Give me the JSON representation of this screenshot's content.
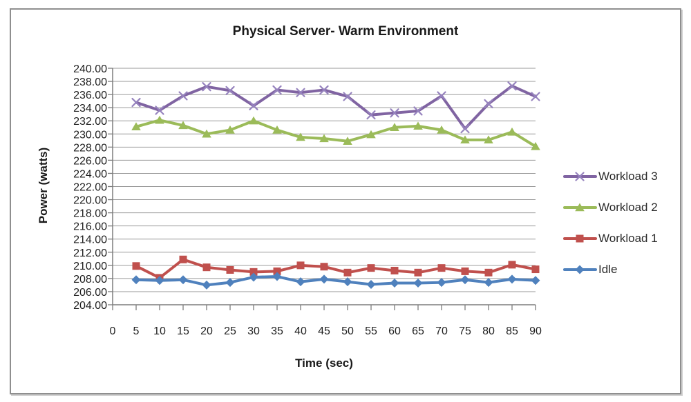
{
  "figure": {
    "background": "#ffffff",
    "border_color": "#8f8f8f",
    "grid_color": "#9a9a9a",
    "axis_color": "#7d7d7d",
    "text_color": "#1f1f1f"
  },
  "chart_data": {
    "type": "line",
    "title": "Physical Server- Warm Environment",
    "xlabel": "Time (sec)",
    "ylabel": "Power (watts)",
    "ylim": [
      204,
      240
    ],
    "y_tick_step": 2,
    "y_tick_labels": [
      "240.00",
      "238.00",
      "236.00",
      "234.00",
      "232.00",
      "230.00",
      "228.00",
      "226.00",
      "224.00",
      "222.00",
      "220.00",
      "218.00",
      "216.00",
      "214.00",
      "212.00",
      "210.00",
      "208.00",
      "206.00",
      "204.00"
    ],
    "x_ticks": [
      0,
      5,
      10,
      15,
      20,
      25,
      30,
      35,
      40,
      45,
      50,
      55,
      60,
      65,
      70,
      75,
      80,
      85,
      90
    ],
    "x_tick_labels": [
      "0",
      "5",
      "10",
      "15",
      "20",
      "25",
      "30",
      "35",
      "40",
      "45",
      "50",
      "55",
      "60",
      "65",
      "70",
      "75",
      "80",
      "85",
      "90"
    ],
    "x": [
      5,
      10,
      15,
      20,
      25,
      30,
      35,
      40,
      45,
      50,
      55,
      60,
      65,
      70,
      75,
      80,
      85,
      90
    ],
    "grid": "horizontal",
    "legend_position": "right",
    "series": [
      {
        "name": "Workload 3",
        "color": "#8064A2",
        "marker_color": "#9683BE",
        "marker": "x",
        "values": [
          234.8,
          233.6,
          235.8,
          237.2,
          236.6,
          234.3,
          236.7,
          236.3,
          236.7,
          235.7,
          232.9,
          233.2,
          233.5,
          235.8,
          230.8,
          234.6,
          237.3,
          235.7
        ]
      },
      {
        "name": "Workload 2",
        "color": "#9BBB59",
        "marker_color": "#9BBB59",
        "marker": "triangle",
        "values": [
          231.1,
          232.1,
          231.3,
          230.0,
          230.6,
          232.0,
          230.6,
          229.5,
          229.3,
          228.9,
          229.9,
          231.0,
          231.2,
          230.6,
          229.1,
          229.1,
          230.3,
          228.1
        ]
      },
      {
        "name": "Workload 1",
        "color": "#C0504D",
        "marker_color": "#C0504D",
        "marker": "square",
        "values": [
          209.9,
          208.1,
          210.9,
          209.7,
          209.3,
          209.0,
          209.1,
          210.0,
          209.8,
          208.9,
          209.6,
          209.2,
          208.9,
          209.6,
          209.1,
          208.9,
          210.1,
          209.4
        ]
      },
      {
        "name": "Idle",
        "color": "#4F81BD",
        "marker_color": "#4F81BD",
        "marker": "diamond",
        "values": [
          207.8,
          207.7,
          207.8,
          207.0,
          207.4,
          208.2,
          208.3,
          207.5,
          207.9,
          207.5,
          207.1,
          207.3,
          207.3,
          207.4,
          207.8,
          207.4,
          207.9,
          207.7
        ]
      }
    ]
  }
}
